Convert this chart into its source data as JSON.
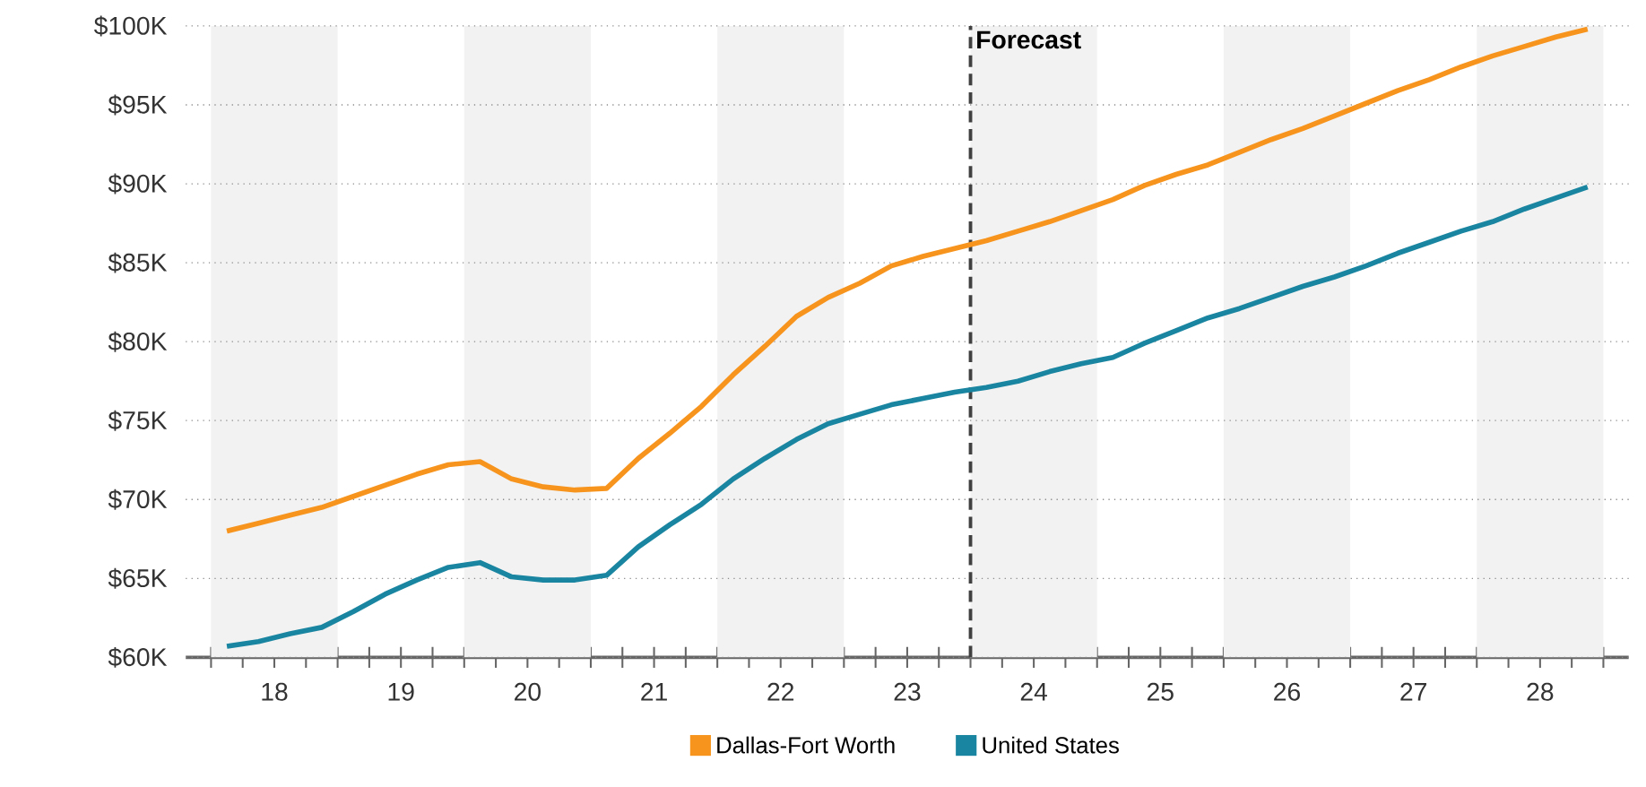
{
  "chart_data": {
    "type": "line",
    "x": [
      17.625,
      17.875,
      18.125,
      18.375,
      18.625,
      18.875,
      19.125,
      19.375,
      19.625,
      19.875,
      20.125,
      20.375,
      20.625,
      20.875,
      21.125,
      21.375,
      21.625,
      21.875,
      22.125,
      22.375,
      22.625,
      22.875,
      23.125,
      23.375,
      23.625,
      23.875,
      24.125,
      24.375,
      24.625,
      24.875,
      25.125,
      25.375,
      25.625,
      25.875,
      26.125,
      26.375,
      26.625,
      26.875,
      27.125,
      27.375,
      27.625,
      27.875,
      28.125,
      28.375
    ],
    "series": [
      {
        "name": "Dallas-Fort Worth",
        "color": "#f7941d",
        "values": [
          68000,
          68500,
          69000,
          69500,
          70200,
          70900,
          71600,
          72200,
          72400,
          71300,
          70800,
          70600,
          70700,
          72600,
          74200,
          75900,
          77900,
          79700,
          81600,
          82800,
          83700,
          84800,
          85400,
          85900,
          86400,
          87000,
          87600,
          88300,
          89000,
          89900,
          90600,
          91200,
          92000,
          92800,
          93500,
          94300,
          95100,
          95900,
          96600,
          97400,
          98100,
          98700,
          99300,
          99800
        ]
      },
      {
        "name": "United States",
        "color": "#1a85a0",
        "values": [
          60700,
          61000,
          61500,
          61900,
          62900,
          64000,
          64900,
          65700,
          66000,
          65100,
          64900,
          64900,
          65200,
          67000,
          68400,
          69700,
          71300,
          72600,
          73800,
          74800,
          75400,
          76000,
          76400,
          76800,
          77100,
          77500,
          78100,
          78600,
          79000,
          79900,
          80700,
          81500,
          82100,
          82800,
          83500,
          84100,
          84800,
          85600,
          86300,
          87000,
          87600,
          88400,
          89100,
          89800
        ]
      }
    ],
    "xlim": [
      17.3,
      28.7
    ],
    "xticks": [
      {
        "value": 17.5,
        "label": null
      },
      {
        "value": 17.75,
        "label": null
      },
      18,
      {
        "value": 18.25,
        "label": null
      },
      {
        "value": 18.5,
        "label": null
      },
      {
        "value": 18.75,
        "label": null
      },
      19,
      {
        "value": 19.25,
        "label": null
      },
      {
        "value": 19.5,
        "label": null
      },
      {
        "value": 19.75,
        "label": null
      },
      20,
      {
        "value": 20.25,
        "label": null
      },
      {
        "value": 20.5,
        "label": null
      },
      {
        "value": 20.75,
        "label": null
      },
      21,
      {
        "value": 21.25,
        "label": null
      },
      {
        "value": 21.5,
        "label": null
      },
      {
        "value": 21.75,
        "label": null
      },
      22,
      {
        "value": 22.25,
        "label": null
      },
      {
        "value": 22.5,
        "label": null
      },
      {
        "value": 22.75,
        "label": null
      },
      23,
      {
        "value": 23.25,
        "label": null
      },
      {
        "value": 23.5,
        "label": null
      },
      {
        "value": 23.75,
        "label": null
      },
      24,
      {
        "value": 24.25,
        "label": null
      },
      {
        "value": 24.5,
        "label": null
      },
      {
        "value": 24.75,
        "label": null
      },
      25,
      {
        "value": 25.25,
        "label": null
      },
      {
        "value": 25.5,
        "label": null
      },
      {
        "value": 25.75,
        "label": null
      },
      26,
      {
        "value": 26.25,
        "label": null
      },
      {
        "value": 26.5,
        "label": null
      },
      {
        "value": 26.75,
        "label": null
      },
      27,
      {
        "value": 27.25,
        "label": null
      },
      {
        "value": 27.5,
        "label": null
      },
      {
        "value": 27.75,
        "label": null
      },
      28,
      {
        "value": 28.25,
        "label": null
      },
      {
        "value": 28.5,
        "label": null
      }
    ],
    "ylim": [
      60000,
      100000
    ],
    "yticks": [
      {
        "value": 60000,
        "label": "$60K"
      },
      {
        "value": 65000,
        "label": "$65K"
      },
      {
        "value": 70000,
        "label": "$70K"
      },
      {
        "value": 75000,
        "label": "$75K"
      },
      {
        "value": 80000,
        "label": "$80K"
      },
      {
        "value": 85000,
        "label": "$85K"
      },
      {
        "value": 90000,
        "label": "$90K"
      },
      {
        "value": 95000,
        "label": "$95K"
      },
      {
        "value": 100000,
        "label": "$100K"
      }
    ],
    "ref_lines": [
      {
        "axis": "x",
        "value": 23.5,
        "label": "Forecast",
        "color": "#404040",
        "line_style": "dashed"
      }
    ],
    "bands": [
      {
        "axis": "x",
        "from": 17.5,
        "to": 18.5,
        "color": "#f2f2f2"
      },
      {
        "axis": "x",
        "from": 19.5,
        "to": 20.5,
        "color": "#f2f2f2"
      },
      {
        "axis": "x",
        "from": 21.5,
        "to": 22.5,
        "color": "#f2f2f2"
      },
      {
        "axis": "x",
        "from": 23.5,
        "to": 24.5,
        "color": "#f2f2f2"
      },
      {
        "axis": "x",
        "from": 25.5,
        "to": 26.5,
        "color": "#f2f2f2"
      },
      {
        "axis": "x",
        "from": 27.5,
        "to": 28.5,
        "color": "#f2f2f2"
      }
    ],
    "grid": "y",
    "legend": "bottom"
  }
}
